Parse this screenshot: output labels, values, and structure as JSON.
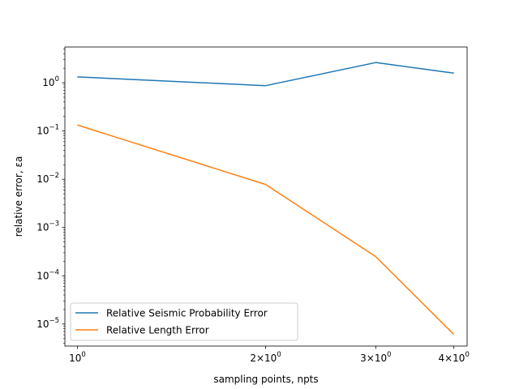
{
  "chart_data": {
    "type": "line",
    "title": "",
    "xlabel": "sampling points, npts",
    "ylabel": "relative error, εa",
    "xscale": "log",
    "yscale": "log",
    "xlim": [
      0.955,
      4.2
    ],
    "ylim": [
      3.5e-06,
      5.5
    ],
    "grid": false,
    "legend_position": "lower-left",
    "x_ticks": [
      {
        "value": 1,
        "base": "10",
        "exp": "0",
        "mult": ""
      },
      {
        "value": 2,
        "base": "10",
        "exp": "0",
        "mult": "2×"
      },
      {
        "value": 3,
        "base": "10",
        "exp": "0",
        "mult": "3×"
      },
      {
        "value": 4,
        "base": "10",
        "exp": "0",
        "mult": "4×"
      }
    ],
    "y_ticks": [
      {
        "value": 1,
        "base": "10",
        "exp": "0"
      },
      {
        "value": 0.1,
        "base": "10",
        "exp": "−1"
      },
      {
        "value": 0.01,
        "base": "10",
        "exp": "−2"
      },
      {
        "value": 0.001,
        "base": "10",
        "exp": "−3"
      },
      {
        "value": 0.0001,
        "base": "10",
        "exp": "−4"
      },
      {
        "value": 1e-05,
        "base": "10",
        "exp": "−5"
      }
    ],
    "x": [
      1,
      2,
      3,
      4
    ],
    "series": [
      {
        "name": "Relative Seismic Probability Error",
        "color": "#1f77b4",
        "values": [
          1.32,
          0.87,
          2.62,
          1.58
        ]
      },
      {
        "name": "Relative Length Error",
        "color": "#ff7f0e",
        "values": [
          0.133,
          0.0078,
          0.00025,
          6.1e-06
        ]
      }
    ]
  }
}
